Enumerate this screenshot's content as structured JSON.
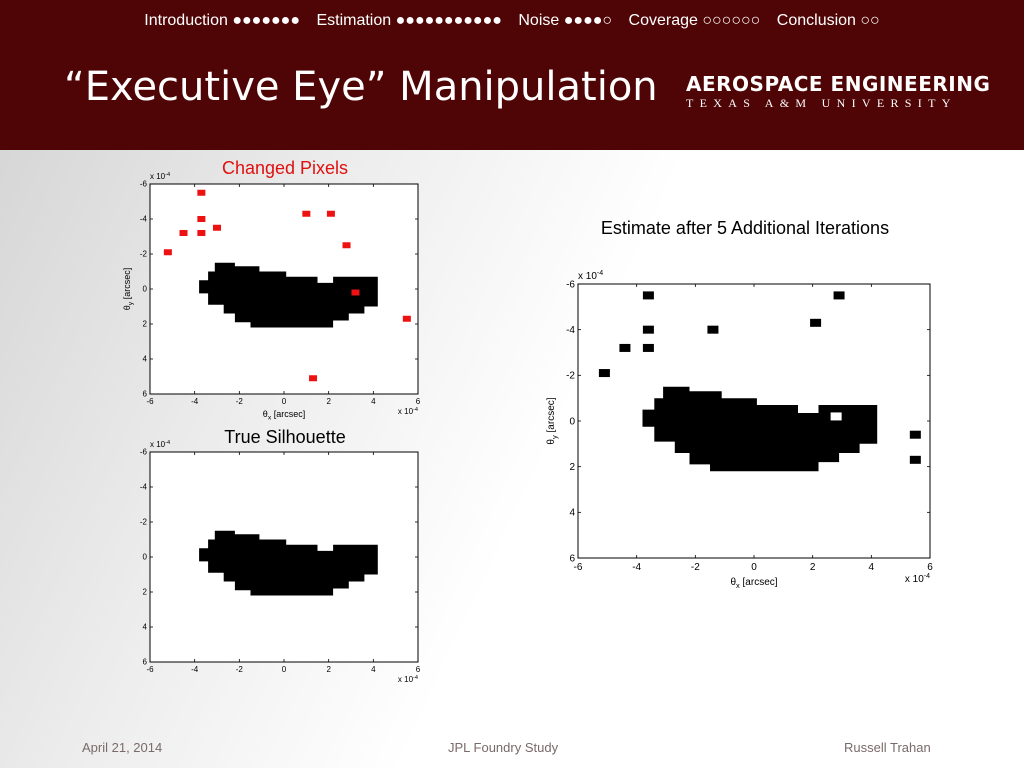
{
  "nav": [
    {
      "name": "Introduction",
      "dots": "●●●●●●●"
    },
    {
      "name": "Estimation",
      "dots": "●●●●●●●●●●●"
    },
    {
      "name": "Noise",
      "dots": "●●●●○"
    },
    {
      "name": "Coverage",
      "dots": "○○○○○○"
    },
    {
      "name": "Conclusion",
      "dots": "○○"
    }
  ],
  "title": "“Executive Eye” Manipulation",
  "logo": {
    "line1": "AEROSPACE ENGINEERING",
    "line2": "TEXAS A&M UNIVERSITY"
  },
  "colors": {
    "header": "#4f0505",
    "changed": "#ee1111",
    "shape": "#000000"
  },
  "footer": {
    "date": "April 21, 2014",
    "center": "JPL Foundry Study",
    "author": "Russell Trahan"
  },
  "chart_data": [
    {
      "type": "heatmap",
      "title": "Changed Pixels",
      "xlabel": "θx [arcsec]",
      "ylabel": "θy [arcsec]",
      "xlim": [
        -6,
        6
      ],
      "ylim": [
        -6,
        6
      ],
      "y_reversed": true,
      "xticks": [
        -6,
        -4,
        -2,
        0,
        2,
        4,
        6
      ],
      "yticks": [
        -6,
        -4,
        -2,
        0,
        2,
        4,
        6
      ],
      "x_exponent": "x 10",
      "y_exponent": "x 10",
      "exponent_power": "-4",
      "shape": "silhouette",
      "hole": false,
      "pixels": [
        [
          -3.7,
          -5.5
        ],
        [
          1,
          -4.3
        ],
        [
          2.1,
          -4.3
        ],
        [
          -3.7,
          -4
        ],
        [
          -3,
          -3.5
        ],
        [
          -4.5,
          -3.2
        ],
        [
          -3.7,
          -3.2
        ],
        [
          2.8,
          -2.5
        ],
        [
          -5.2,
          -2.1
        ],
        [
          3.2,
          0.2
        ],
        [
          5.5,
          1.7
        ],
        [
          1.3,
          5.1
        ]
      ],
      "pixel_color": "#ee1111"
    },
    {
      "type": "heatmap",
      "title": "True Silhouette",
      "xlabel": "",
      "ylabel": "",
      "xlim": [
        -6,
        6
      ],
      "ylim": [
        -6,
        6
      ],
      "y_reversed": true,
      "xticks": [
        -6,
        -4,
        -2,
        0,
        2,
        4,
        6
      ],
      "yticks": [
        -6,
        -4,
        -2,
        0,
        2,
        4,
        6
      ],
      "x_exponent": "x 10",
      "y_exponent": "x 10",
      "exponent_power": "-4",
      "shape": "silhouette",
      "hole": false,
      "pixels": [],
      "pixel_color": "#000000"
    },
    {
      "type": "heatmap",
      "title": "Estimate after 5 Additional Iterations",
      "xlabel": "θx [arcsec]",
      "ylabel": "θy [arcsec]",
      "xlim": [
        -6,
        6
      ],
      "ylim": [
        -6,
        6
      ],
      "y_reversed": true,
      "xticks": [
        -6,
        -4,
        -2,
        0,
        2,
        4,
        6
      ],
      "yticks": [
        -6,
        -4,
        -2,
        0,
        2,
        4,
        6
      ],
      "x_exponent": "x 10",
      "y_exponent": "x 10",
      "exponent_power": "-4",
      "shape": "silhouette",
      "hole": true,
      "hole_at": [
        2.8,
        -0.2
      ],
      "pixels": [
        [
          -3.6,
          -5.5
        ],
        [
          2.9,
          -5.5
        ],
        [
          2.1,
          -4.3
        ],
        [
          -3.6,
          -4
        ],
        [
          -1.4,
          -4
        ],
        [
          -4.4,
          -3.2
        ],
        [
          -3.6,
          -3.2
        ],
        [
          -5.1,
          -2.1
        ],
        [
          5.5,
          0.6
        ],
        [
          5.5,
          1.7
        ]
      ],
      "pixel_color": "#000000"
    }
  ]
}
